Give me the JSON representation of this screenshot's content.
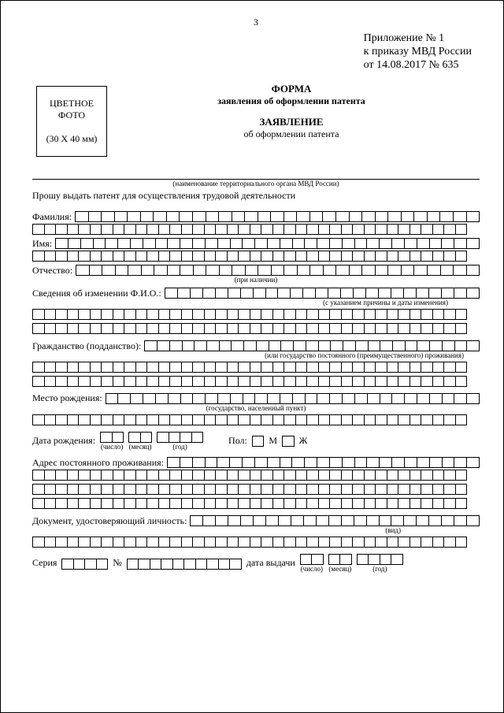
{
  "page_number": "3",
  "appendix": {
    "line1": "Приложение № 1",
    "line2": "к приказу МВД России",
    "line3": "от 14.08.2017   № 635"
  },
  "photo": {
    "line1": "ЦВЕТНОЕ",
    "line2": "ФОТО",
    "size": "(30 X 40 мм)"
  },
  "titles": {
    "t1": "ФОРМА",
    "t2": "заявления об оформлении патента",
    "t3": "ЗАЯВЛЕНИЕ",
    "t4": "об оформлении патента"
  },
  "hints": {
    "mvd": "(наименование территориального органа МВД России)",
    "request": "Прошу выдать патент для осуществления трудовой деятельности",
    "if_present": "(при наличии)",
    "with_reason": "(с указанием причины и даты изменения)",
    "or_state": "(или государство постоянного (преимущественного) проживания)",
    "state_city": "(государство, населенный пункт)",
    "vid": "(вид)"
  },
  "labels": {
    "surname": "Фамилия:",
    "name": "Имя:",
    "patronymic": "Отчество:",
    "fio_change": "Сведения об изменении Ф.И.О.:",
    "citizenship": "Гражданство (подданство):",
    "birthplace": "Место рождения:",
    "dob": "Дата рождения:",
    "sex": "Пол:",
    "m": "М",
    "f": "Ж",
    "address": "Адрес постоянного проживания:",
    "doc": "Документ, удостоверяющий личность:",
    "series": "Серия",
    "number": "№",
    "issue_date": "дата выдачи",
    "day": "(число)",
    "month": "(месяц)",
    "year": "(год)"
  },
  "layout": {
    "full_cells": 38,
    "cell_width": 14.5,
    "colors": {
      "border": "#000000",
      "background": "#ffffff",
      "text": "#000000"
    },
    "font_family": "Times New Roman"
  }
}
